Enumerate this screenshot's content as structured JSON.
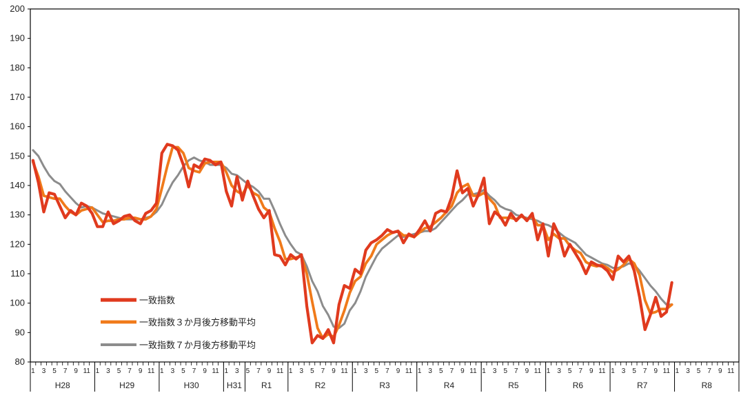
{
  "chart_data": {
    "type": "line",
    "ylim": [
      80,
      200
    ],
    "yticks": [
      80,
      90,
      100,
      110,
      120,
      130,
      140,
      150,
      160,
      170,
      180,
      190,
      200
    ],
    "x_start": "2016-01",
    "x_end": "2026-12",
    "x_month_labels": [
      "1",
      "3",
      "5",
      "7",
      "9",
      "11"
    ],
    "eras": [
      {
        "label": "H28",
        "start": "2016-01",
        "end": "2016-12"
      },
      {
        "label": "H29",
        "start": "2017-01",
        "end": "2017-12"
      },
      {
        "label": "H30",
        "start": "2018-01",
        "end": "2018-12"
      },
      {
        "label": "H31",
        "start": "2019-01",
        "end": "2019-04"
      },
      {
        "label": "R1",
        "start": "2019-05",
        "end": "2019-12"
      },
      {
        "label": "R2",
        "start": "2020-01",
        "end": "2020-12"
      },
      {
        "label": "R3",
        "start": "2021-01",
        "end": "2021-12"
      },
      {
        "label": "R4",
        "start": "2022-01",
        "end": "2022-12"
      },
      {
        "label": "R5",
        "start": "2023-01",
        "end": "2023-12"
      },
      {
        "label": "R6",
        "start": "2024-01",
        "end": "2024-12"
      },
      {
        "label": "R7",
        "start": "2025-01",
        "end": "2025-12"
      },
      {
        "label": "R8",
        "start": "2026-01",
        "end": "2026-12"
      }
    ],
    "legend_position": "bottom-left",
    "grid": false,
    "series": [
      {
        "name": "一致指数",
        "color": "#e03a1e",
        "start": "2016-01",
        "values": [
          148.5,
          141.0,
          131.0,
          137.5,
          137.0,
          133.0,
          129.0,
          131.5,
          130.0,
          134.0,
          133.0,
          130.5,
          126.0,
          126.0,
          131.0,
          127.0,
          128.0,
          129.5,
          130.0,
          128.0,
          127.0,
          130.5,
          131.5,
          134.0,
          151.0,
          154.0,
          153.5,
          152.0,
          147.0,
          139.5,
          147.0,
          146.0,
          149.0,
          148.5,
          147.0,
          148.0,
          138.0,
          133.0,
          143.0,
          135.0,
          141.5,
          136.5,
          132.0,
          129.0,
          131.5,
          116.5,
          116.0,
          113.0,
          116.5,
          115.0,
          116.5,
          99.0,
          86.5,
          89.0,
          88.0,
          91.0,
          86.5,
          99.5,
          106.0,
          105.0,
          111.5,
          110.0,
          118.0,
          120.5,
          121.5,
          123.0,
          125.0,
          124.0,
          124.5,
          120.5,
          123.5,
          122.5,
          125.0,
          128.0,
          124.5,
          130.5,
          131.5,
          131.0,
          136.0,
          145.0,
          137.5,
          139.0,
          133.0,
          137.0,
          142.5,
          127.0,
          131.0,
          129.5,
          126.5,
          130.5,
          128.0,
          130.0,
          128.0,
          130.5,
          121.5,
          127.0,
          116.0,
          127.0,
          123.0,
          116.0,
          120.0,
          117.0,
          114.0,
          110.0,
          114.0,
          113.0,
          112.5,
          111.0,
          108.0,
          116.0,
          114.0,
          116.0,
          111.0,
          102.0,
          91.0,
          96.0,
          102.0,
          95.5,
          97.0,
          107.0
        ]
      },
      {
        "name": "一致指数３か月後方移動平均",
        "color": "#f07a1a",
        "start": "2016-01",
        "values": [
          148.0,
          143.0,
          136.5,
          136.0,
          135.5,
          135.5,
          133.0,
          131.0,
          130.0,
          131.5,
          132.0,
          132.5,
          130.0,
          127.5,
          128.0,
          128.0,
          128.5,
          128.5,
          129.0,
          129.0,
          128.5,
          128.5,
          129.5,
          132.0,
          139.0,
          146.5,
          153.0,
          153.0,
          151.0,
          146.0,
          145.0,
          144.5,
          147.5,
          148.0,
          148.0,
          148.0,
          144.5,
          140.0,
          138.0,
          137.0,
          140.0,
          137.5,
          136.5,
          132.5,
          131.0,
          125.5,
          121.0,
          115.0,
          115.0,
          115.5,
          116.0,
          110.0,
          100.5,
          91.5,
          88.0,
          89.5,
          88.5,
          92.5,
          97.5,
          103.5,
          107.5,
          109.0,
          113.5,
          116.0,
          120.0,
          121.5,
          123.0,
          124.0,
          124.5,
          123.0,
          123.0,
          122.5,
          124.0,
          125.5,
          126.0,
          127.5,
          129.0,
          131.0,
          133.0,
          137.5,
          139.5,
          140.5,
          136.5,
          136.5,
          137.5,
          135.5,
          133.5,
          129.0,
          129.0,
          129.0,
          128.5,
          129.5,
          128.5,
          129.5,
          126.5,
          126.5,
          121.5,
          123.5,
          122.0,
          122.0,
          119.5,
          118.0,
          117.0,
          114.0,
          113.0,
          112.5,
          113.0,
          112.0,
          110.5,
          111.5,
          113.0,
          115.0,
          113.5,
          109.5,
          101.0,
          96.5,
          97.0,
          98.0,
          98.0,
          99.5
        ]
      },
      {
        "name": "一致指数７か月後方移動平均",
        "color": "#8c8c8c",
        "start": "2016-01",
        "values": [
          152.0,
          150.0,
          146.5,
          143.5,
          141.5,
          140.5,
          138.0,
          136.0,
          134.0,
          132.5,
          133.0,
          132.5,
          131.5,
          130.5,
          130.0,
          129.5,
          129.0,
          128.5,
          128.5,
          128.5,
          128.5,
          129.0,
          129.5,
          131.0,
          133.5,
          137.5,
          141.0,
          143.5,
          146.5,
          148.5,
          149.5,
          148.5,
          148.0,
          147.0,
          147.0,
          147.0,
          146.0,
          144.0,
          143.5,
          142.0,
          140.5,
          139.5,
          138.0,
          135.5,
          135.5,
          131.5,
          127.0,
          123.0,
          120.0,
          117.5,
          116.5,
          112.5,
          107.5,
          104.0,
          99.0,
          96.0,
          92.0,
          91.5,
          93.0,
          97.5,
          100.0,
          104.0,
          109.0,
          112.5,
          116.0,
          118.5,
          120.0,
          121.5,
          123.0,
          122.5,
          123.0,
          123.5,
          124.0,
          124.5,
          124.5,
          125.5,
          127.5,
          129.5,
          131.5,
          133.5,
          135.0,
          137.0,
          137.0,
          137.5,
          138.5,
          136.5,
          135.0,
          133.0,
          132.0,
          131.5,
          130.0,
          129.5,
          129.0,
          128.5,
          128.0,
          127.0,
          126.5,
          125.5,
          124.0,
          122.5,
          121.5,
          120.5,
          118.5,
          116.5,
          115.5,
          114.5,
          113.5,
          113.0,
          112.0,
          112.0,
          112.5,
          113.5,
          113.0,
          111.0,
          108.5,
          106.0,
          104.0,
          101.5,
          99.5,
          99.5
        ]
      }
    ]
  }
}
